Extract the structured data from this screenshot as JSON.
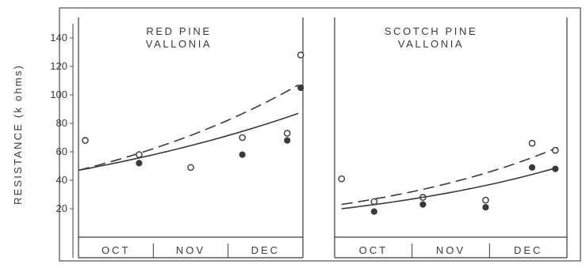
{
  "chart_data": {
    "type": "scatter",
    "ylabel": "RESISTANCE (k ohms)",
    "yticks": [
      20,
      40,
      60,
      80,
      100,
      120,
      140
    ],
    "ylim": [
      0,
      150
    ],
    "months": [
      "OCT",
      "NOV",
      "DEC"
    ],
    "panels": [
      {
        "title_line1": "RED PINE",
        "title_line2": "VALLONIA",
        "xlim": [
          0,
          100
        ],
        "series": [
          {
            "marker": "open-circle",
            "style": "dashed",
            "x": [
              3,
              27,
              50,
              73,
              93,
              99
            ],
            "y": [
              68,
              58,
              49,
              70,
              73,
              128
            ],
            "curve": {
              "x0": 0,
              "x1": 98,
              "y0": 47,
              "y1": 107
            }
          },
          {
            "marker": "filled-circle",
            "style": "solid",
            "x": [
              27,
              73,
              93,
              99
            ],
            "y": [
              52,
              58,
              68,
              105
            ],
            "curve": {
              "x0": 0,
              "x1": 98,
              "y0": 47,
              "y1": 87
            }
          }
        ]
      },
      {
        "title_line1": "SCOTCH PINE",
        "title_line2": "VALLONIA",
        "xlim": [
          0,
          100
        ],
        "series": [
          {
            "marker": "open-circle",
            "style": "dashed",
            "x": [
              3,
              17,
              38,
              65,
              85,
              95
            ],
            "y": [
              41,
              25,
              28,
              26,
              66,
              61
            ],
            "curve": {
              "x0": 3,
              "x1": 96,
              "y0": 23,
              "y1": 63
            }
          },
          {
            "marker": "filled-circle",
            "style": "solid",
            "x": [
              17,
              38,
              65,
              85,
              95
            ],
            "y": [
              18,
              23,
              21,
              49,
              48
            ],
            "curve": {
              "x0": 3,
              "x1": 96,
              "y0": 20,
              "y1": 49
            }
          }
        ]
      }
    ]
  }
}
